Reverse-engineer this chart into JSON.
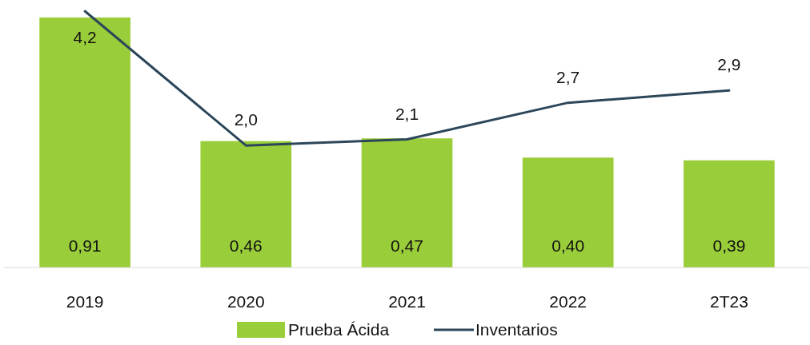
{
  "chart_data": {
    "type": "bar",
    "categories": [
      "2019",
      "2020",
      "2021",
      "2022",
      "2T23"
    ],
    "series": [
      {
        "name": "Prueba Ácida",
        "color": "#9acd3a",
        "values": [
          0.91,
          0.46,
          0.47,
          0.4,
          0.39
        ],
        "value_labels": [
          "0,91",
          "0,46",
          "0,47",
          "0,40",
          "0,39"
        ]
      },
      {
        "name": "Inventarios",
        "type": "line",
        "axis": "y2",
        "color": "#2c465a",
        "values": [
          4.2,
          2.0,
          2.1,
          2.7,
          2.9
        ],
        "value_labels": [
          "4,2",
          "2,0",
          "2,1",
          "2,7",
          "2,9"
        ]
      }
    ],
    "legend": "bottom"
  }
}
